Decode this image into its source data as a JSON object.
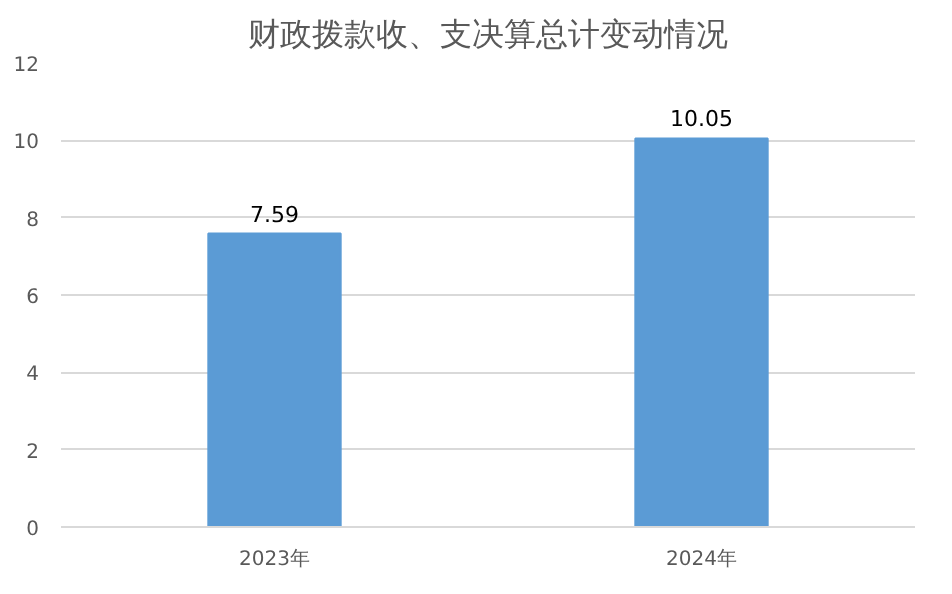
{
  "chart_data": {
    "type": "bar",
    "title": "财政拨款收、支决算总计变动情况",
    "categories": [
      "2023年",
      "2024年"
    ],
    "values": [
      7.59,
      10.05
    ],
    "color": "#5b9bd5",
    "ylim": [
      0,
      12
    ],
    "yticks": [
      0,
      2,
      4,
      6,
      8,
      10,
      12
    ],
    "grid": "y",
    "data_labels": true
  }
}
